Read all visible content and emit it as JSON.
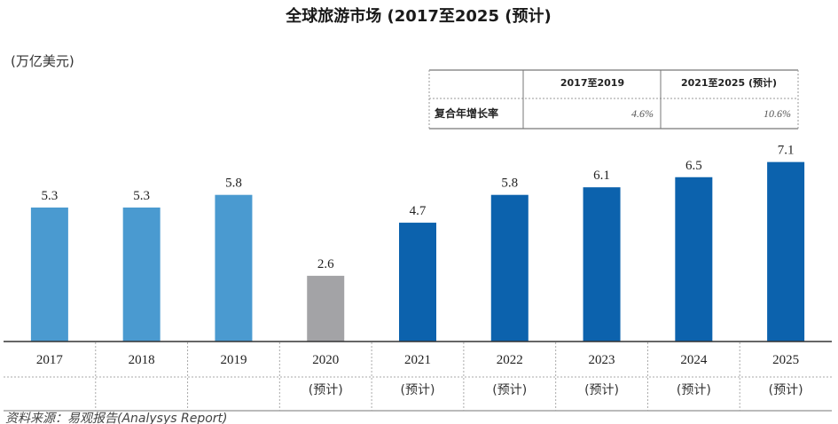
{
  "chart_data": {
    "type": "bar",
    "title": "全球旅游市场 (2017至2025 (预计)",
    "ylabel": "(万亿美元)",
    "categories": [
      "2017",
      "2018",
      "2019",
      "2020",
      "2021",
      "2022",
      "2023",
      "2024",
      "2025"
    ],
    "values": [
      5.3,
      5.3,
      5.8,
      2.6,
      4.7,
      5.8,
      6.1,
      6.5,
      7.1
    ],
    "value_labels": [
      "5.3",
      "5.3",
      "5.8",
      "2.6",
      "4.7",
      "5.8",
      "6.1",
      "6.5",
      "7.1"
    ],
    "forecast_notes": [
      "",
      "",
      "",
      "(预计)",
      "(预计)",
      "(预计)",
      "(预计)",
      "(预计)",
      "(预计)"
    ],
    "bar_colors": [
      "#4a9ad0",
      "#4a9ad0",
      "#4a9ad0",
      "#a3a3a6",
      "#0c62ad",
      "#0c62ad",
      "#0c62ad",
      "#0c62ad",
      "#0c62ad"
    ],
    "ylim": [
      0,
      8
    ],
    "grid": false
  },
  "cagr_table": {
    "headers": [
      "2017至2019",
      "2021至2025 (预计)"
    ],
    "row_label": "复合年增长率",
    "values": [
      "4.6%",
      "10.6%"
    ]
  },
  "source": "资料来源：易观报告(Analysys Report)"
}
